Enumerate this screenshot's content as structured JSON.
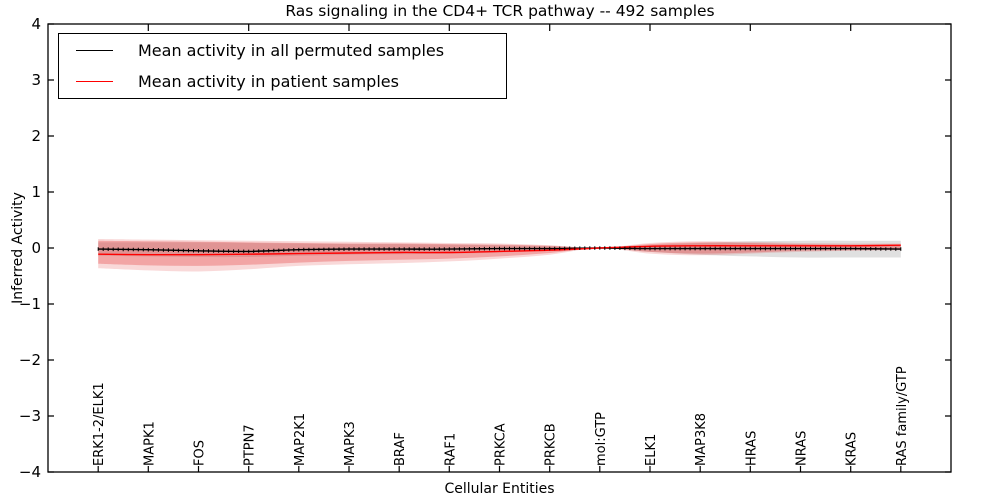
{
  "chart_data": {
    "type": "line",
    "title": "Ras signaling in the CD4+ TCR pathway -- 492 samples",
    "xlabel": "Cellular Entities",
    "ylabel": "Inferred Activity",
    "ylim": [
      -4,
      4
    ],
    "yticks": [
      4,
      3,
      2,
      1,
      0,
      -1,
      -2,
      -3,
      -4
    ],
    "grid": false,
    "categories": [
      "ERK1-2/ELK1",
      "MAPK1",
      "FOS",
      "PTPN7",
      "MAP2K1",
      "MAPK3",
      "BRAF",
      "RAF1",
      "PRKCA",
      "PRKCB",
      "mol:GTP",
      "ELK1",
      "MAP3K8",
      "HRAS",
      "NRAS",
      "KRAS",
      "RAS family/GTP"
    ],
    "legend": {
      "position": "upper left",
      "entries": [
        {
          "label": "Mean activity in all permuted samples",
          "color": "#000000"
        },
        {
          "label": "Mean activity in patient samples",
          "color": "#ff0000"
        }
      ]
    },
    "series": [
      {
        "name": "permuted_mean",
        "color": "#000000",
        "values": [
          -0.02,
          -0.03,
          -0.05,
          -0.06,
          -0.03,
          -0.02,
          -0.02,
          -0.02,
          -0.01,
          -0.01,
          0.0,
          -0.01,
          -0.01,
          -0.01,
          -0.01,
          -0.01,
          -0.02
        ]
      },
      {
        "name": "patient_mean",
        "color": "#ff0000",
        "values": [
          -0.11,
          -0.12,
          -0.12,
          -0.11,
          -0.1,
          -0.09,
          -0.08,
          -0.08,
          -0.06,
          -0.04,
          0.0,
          0.03,
          0.04,
          0.04,
          0.04,
          0.04,
          0.05
        ]
      }
    ],
    "bands": [
      {
        "name": "permuted_band",
        "color": "#999999",
        "opacity": 0.3,
        "upper": [
          0.1,
          0.1,
          0.1,
          0.09,
          0.08,
          0.07,
          0.07,
          0.06,
          0.05,
          0.03,
          0.0,
          0.05,
          0.09,
          0.12,
          0.13,
          0.13,
          0.13
        ],
        "lower": [
          -0.14,
          -0.15,
          -0.16,
          -0.16,
          -0.14,
          -0.12,
          -0.11,
          -0.1,
          -0.08,
          -0.05,
          0.0,
          -0.07,
          -0.12,
          -0.15,
          -0.17,
          -0.17,
          -0.17
        ]
      },
      {
        "name": "patient_band_outer",
        "color": "#e04040",
        "opacity": 0.2,
        "upper": [
          0.16,
          0.15,
          0.14,
          0.13,
          0.12,
          0.11,
          0.1,
          0.09,
          0.08,
          0.05,
          0.0,
          0.09,
          0.12,
          0.11,
          0.09,
          0.08,
          0.08
        ],
        "lower": [
          -0.36,
          -0.4,
          -0.42,
          -0.38,
          -0.32,
          -0.29,
          -0.27,
          -0.24,
          -0.19,
          -0.12,
          0.0,
          -0.1,
          -0.13,
          -0.1,
          -0.07,
          -0.05,
          -0.04
        ]
      },
      {
        "name": "patient_band_inner",
        "color": "#e03030",
        "opacity": 0.3,
        "upper": [
          0.13,
          0.12,
          0.11,
          0.1,
          0.09,
          0.08,
          0.08,
          0.07,
          0.06,
          0.04,
          0.0,
          0.07,
          0.1,
          0.09,
          0.07,
          0.06,
          0.06
        ],
        "lower": [
          -0.28,
          -0.31,
          -0.32,
          -0.3,
          -0.26,
          -0.23,
          -0.21,
          -0.19,
          -0.15,
          -0.09,
          0.0,
          -0.07,
          -0.1,
          -0.08,
          -0.05,
          -0.04,
          -0.03
        ]
      }
    ],
    "frame_color": "#000000"
  }
}
